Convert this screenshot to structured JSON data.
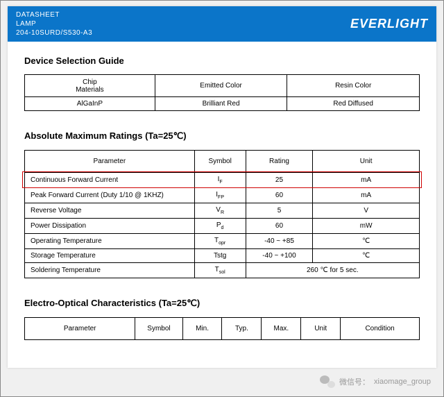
{
  "header": {
    "line1": "DATASHEET",
    "line2": "LAMP",
    "line3": "204-10SURD/S530-A3",
    "brand": "EVERLIGHT"
  },
  "section1": {
    "title": "Device Selection Guide",
    "columns": [
      "Chip\nMaterials",
      "Emitted Color",
      "Resin Color"
    ],
    "row": [
      "AlGaInP",
      "Brilliant Red",
      "Red Diffused"
    ],
    "col_widths_pct": [
      33,
      33.5,
      33.5
    ]
  },
  "section2": {
    "title": "Absolute Maximum Ratings (Ta=25℃)",
    "columns": [
      "Parameter",
      "Symbol",
      "Rating",
      "Unit"
    ],
    "col_widths_pct": [
      43,
      13,
      17,
      27
    ],
    "rows": [
      {
        "param": "Continuous Forward Current",
        "symbol": "I",
        "sub": "F",
        "rating": "25",
        "unit": "mA",
        "highlight": true
      },
      {
        "param": "Peak Forward Current (Duty 1/10 @ 1KHZ)",
        "symbol": "I",
        "sub": "FP",
        "rating": "60",
        "unit": "mA"
      },
      {
        "param": "Reverse Voltage",
        "symbol": "V",
        "sub": "R",
        "rating": "5",
        "unit": "V"
      },
      {
        "param": "Power Dissipation",
        "symbol": "P",
        "sub": "d",
        "rating": "60",
        "unit": "mW"
      },
      {
        "param": "Operating Temperature",
        "symbol": "T",
        "sub": "opr",
        "rating": "-40 ~ +85",
        "unit": "℃"
      },
      {
        "param": "Storage Temperature",
        "symbol": "Tstg",
        "sub": "",
        "rating": "-40 ~ +100",
        "unit": "℃"
      },
      {
        "param": "Soldering Temperature",
        "symbol": "T",
        "sub": "sol",
        "rating_span": "260  ℃  for 5 sec."
      }
    ]
  },
  "section3": {
    "title": "Electro-Optical Characteristics (Ta=25℃)",
    "columns": [
      "Parameter",
      "Symbol",
      "Min.",
      "Typ.",
      "Max.",
      "Unit",
      "Condition"
    ]
  },
  "watermark": {
    "label": "微信号：",
    "value": "xiaomage_group"
  },
  "colors": {
    "header_bg": "#0b75c9",
    "highlight_border": "#d00000",
    "page_bg": "#ffffff"
  }
}
